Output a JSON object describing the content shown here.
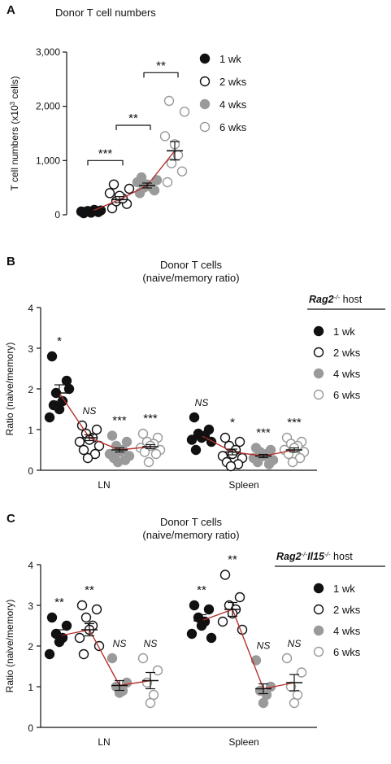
{
  "colors": {
    "black": "#111111",
    "grey": "#9a9a9a",
    "line": "#b5312f"
  },
  "chart_data": [
    {
      "panel": "A",
      "type": "scatter",
      "title": "Donor T cell numbers",
      "ylabel": "T cell numbers (x10",
      "ylabel_sup": "3",
      "ylabel_end": " cells)",
      "ylim": [
        0,
        3000
      ],
      "yticks": [
        "0",
        "1,000",
        "2,000",
        "3,000"
      ],
      "groups": [
        {
          "name": "1 wk",
          "fill": "black",
          "mean": 60,
          "sem": 15,
          "points": [
            30,
            50,
            70,
            90,
            40,
            60,
            80,
            55
          ]
        },
        {
          "name": "2 wks",
          "fill": "open-black",
          "mean": 280,
          "sem": 55,
          "points": [
            120,
            200,
            250,
            300,
            350,
            400,
            480,
            560
          ]
        },
        {
          "name": "4 wks",
          "fill": "grey",
          "mean": 540,
          "sem": 45,
          "points": [
            400,
            450,
            500,
            520,
            560,
            600,
            640,
            690
          ]
        },
        {
          "name": "6 wks",
          "fill": "open-grey",
          "mean": 1180,
          "sem": 170,
          "points": [
            600,
            800,
            950,
            1100,
            1300,
            1450,
            1900,
            2100
          ]
        }
      ],
      "significance": [
        {
          "from": 0,
          "to": 1,
          "label": "***",
          "y": 1000
        },
        {
          "from": 1,
          "to": 2,
          "label": "**",
          "y": 1650
        },
        {
          "from": 2,
          "to": 3,
          "label": "**",
          "y": 2620
        }
      ],
      "legend": [
        "1 wk",
        "2 wks",
        "4 wks",
        "6 wks"
      ]
    },
    {
      "panel": "B",
      "type": "scatter",
      "title_line1": "Donor T cells",
      "title_line2": "(naive/memory ratio)",
      "ylabel": "Ratio (naive/memory)",
      "ylim": [
        0,
        4
      ],
      "yticks": [
        "0",
        "1",
        "2",
        "3",
        "4"
      ],
      "categories": [
        "LN",
        "Spleen"
      ],
      "host": "Rag2",
      "host_sup": "-/-",
      "host_end": " host",
      "sets": [
        [
          {
            "fill": "black",
            "mean": 1.9,
            "sem": 0.2,
            "sig": "*",
            "points": [
              2.8,
              2.2,
              1.9,
              1.7,
              1.5,
              1.3,
              2.0,
              1.6
            ]
          },
          {
            "fill": "open-black",
            "mean": 0.8,
            "sem": 0.07,
            "sig": "NS",
            "points": [
              1.1,
              1.0,
              0.9,
              0.8,
              0.75,
              0.7,
              0.6,
              0.5,
              0.4,
              0.3
            ]
          },
          {
            "fill": "grey",
            "mean": 0.5,
            "sem": 0.05,
            "sig": "***",
            "points": [
              0.85,
              0.7,
              0.6,
              0.5,
              0.45,
              0.4,
              0.35,
              0.3,
              0.25,
              0.2
            ]
          },
          {
            "fill": "open-grey",
            "mean": 0.58,
            "sem": 0.05,
            "sig": "***",
            "points": [
              0.9,
              0.8,
              0.7,
              0.65,
              0.6,
              0.55,
              0.5,
              0.45,
              0.4,
              0.2
            ]
          }
        ],
        [
          {
            "fill": "black",
            "mean": 0.85,
            "sem": 0.06,
            "sig": "NS",
            "points": [
              1.3,
              1.0,
              0.9,
              0.85,
              0.8,
              0.75,
              0.7,
              0.5
            ]
          },
          {
            "fill": "open-black",
            "mean": 0.45,
            "sem": 0.07,
            "sig": "*",
            "points": [
              0.8,
              0.7,
              0.6,
              0.5,
              0.4,
              0.35,
              0.3,
              0.2,
              0.15,
              0.1
            ]
          },
          {
            "fill": "grey",
            "mean": 0.35,
            "sem": 0.04,
            "sig": "***",
            "points": [
              0.55,
              0.5,
              0.45,
              0.4,
              0.35,
              0.3,
              0.25,
              0.2,
              0.15
            ]
          },
          {
            "fill": "open-grey",
            "mean": 0.5,
            "sem": 0.05,
            "sig": "***",
            "points": [
              0.8,
              0.7,
              0.65,
              0.6,
              0.55,
              0.5,
              0.45,
              0.4,
              0.3,
              0.2
            ]
          }
        ]
      ],
      "legend": [
        "1 wk",
        "2 wks",
        "4 wks",
        "6 wks"
      ]
    },
    {
      "panel": "C",
      "type": "scatter",
      "title_line1": "Donor T cells",
      "title_line2": "(naive/memory ratio)",
      "ylabel": "Ratio (naive/memory)",
      "ylim": [
        0,
        4
      ],
      "yticks": [
        "0",
        "1",
        "2",
        "3",
        "4"
      ],
      "categories": [
        "LN",
        "Spleen"
      ],
      "host": "Rag2",
      "host_sup": "-/-",
      "host_mid": "Il15",
      "host_sup2": "-/-",
      "host_end": " host",
      "sets": [
        [
          {
            "fill": "black",
            "mean": 2.25,
            "sem": 0.15,
            "sig": "**",
            "points": [
              2.7,
              2.5,
              2.3,
              2.2,
              2.1,
              1.8
            ]
          },
          {
            "fill": "open-black",
            "mean": 2.4,
            "sem": 0.15,
            "sig": "**",
            "points": [
              3.0,
              2.9,
              2.7,
              2.5,
              2.4,
              2.2,
              2.0,
              1.8
            ]
          },
          {
            "fill": "grey",
            "mean": 1.03,
            "sem": 0.12,
            "sig": "NS",
            "points": [
              1.7,
              1.1,
              1.0,
              0.9,
              0.85
            ]
          },
          {
            "fill": "open-grey",
            "mean": 1.15,
            "sem": 0.2,
            "sig": "NS",
            "points": [
              1.7,
              1.4,
              1.1,
              0.8,
              0.6
            ]
          }
        ],
        [
          {
            "fill": "black",
            "mean": 2.62,
            "sem": 0.15,
            "sig": "**",
            "points": [
              3.0,
              2.9,
              2.7,
              2.6,
              2.5,
              2.3,
              2.2
            ]
          },
          {
            "fill": "open-black",
            "mean": 2.9,
            "sem": 0.17,
            "sig": "**",
            "points": [
              3.75,
              3.2,
              3.0,
              2.9,
              2.8,
              2.6,
              2.4
            ]
          },
          {
            "fill": "grey",
            "mean": 0.95,
            "sem": 0.12,
            "sig": "NS",
            "points": [
              1.65,
              1.0,
              0.9,
              0.8,
              0.6
            ]
          },
          {
            "fill": "open-grey",
            "mean": 1.1,
            "sem": 0.2,
            "sig": "NS",
            "points": [
              1.7,
              1.35,
              1.0,
              0.8,
              0.6
            ]
          }
        ]
      ],
      "legend": [
        "1 wk",
        "2 wks",
        "4 wks",
        "6 wks"
      ]
    }
  ]
}
